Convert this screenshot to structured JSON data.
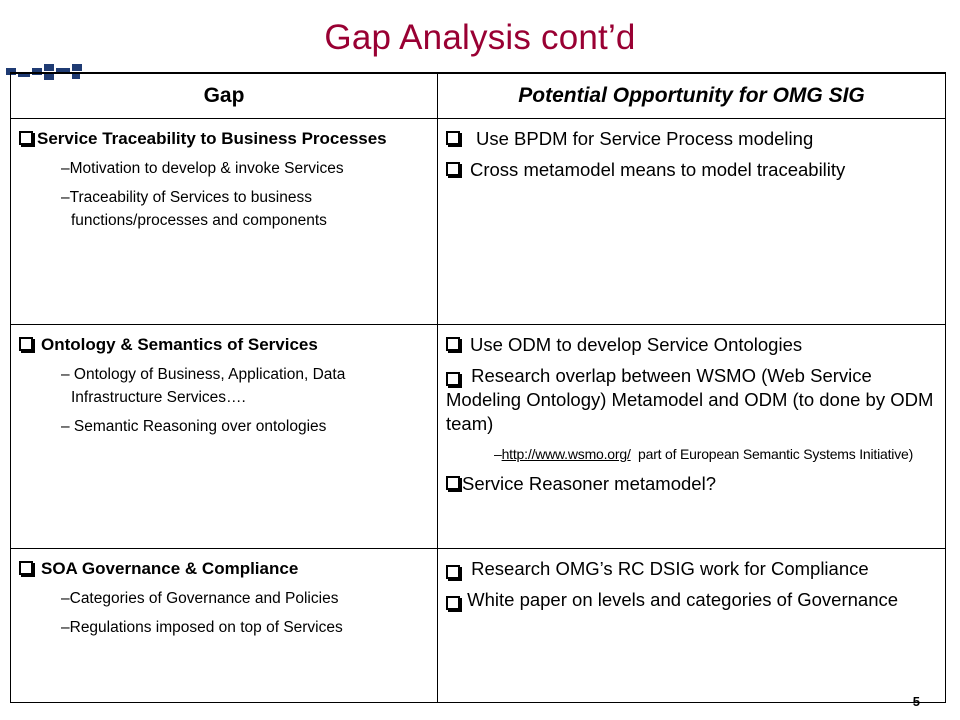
{
  "slide": {
    "title": "Gap Analysis  cont’d",
    "page_number": "5"
  },
  "table": {
    "headers": [
      "Gap",
      "Potential Opportunity for OMG SIG"
    ],
    "rows": [
      {
        "gap_title": "Service Traceability to Business Processes",
        "gap_subs": [
          "–Motivation to develop & invoke Services",
          "–Traceability of Services to business functions/processes and components"
        ],
        "opportunities": [
          "Use BPDM for Service Process modeling",
          "Cross metamodel means to model traceability"
        ]
      },
      {
        "gap_title": "Ontology & Semantics of Services",
        "gap_subs": [
          "– Ontology of Business, Application, Data Infrastructure Services….",
          "– Semantic Reasoning over ontologies"
        ],
        "opportunities": [
          "Use ODM to develop Service Ontologies",
          "Research overlap between WSMO (Web Service Modeling Ontology) Metamodel and ODM (to done by ODM team)",
          "Service Reasoner metamodel?"
        ],
        "opportunity_sub": {
          "prefix": "–",
          "link": "http://www.wsmo.org/",
          "suffix": "part of European Semantic Systems Initiative)"
        }
      },
      {
        "gap_title": "SOA Governance & Compliance",
        "gap_subs": [
          "–Categories of Governance and Policies",
          "–Regulations imposed on top of Services"
        ],
        "opportunities": [
          "Research OMG’s RC DSIG work for Compliance",
          "White paper on levels and categories of Governance"
        ]
      }
    ]
  },
  "icons": {
    "bullet": "checkbox-bullet-icon",
    "decoration": "corner-squares-decoration"
  }
}
